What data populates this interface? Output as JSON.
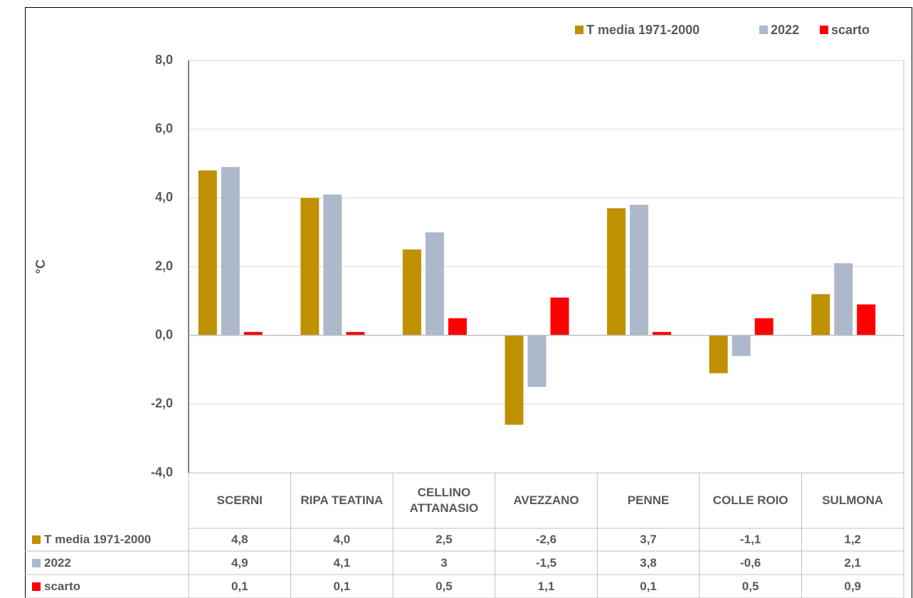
{
  "chart_data": {
    "type": "bar",
    "y_label": "°C",
    "categories": [
      "SCERNI",
      "RIPA TEATINA",
      "CELLINO ATTANASIO",
      "AVEZZANO",
      "PENNE",
      "COLLE ROIO",
      "SULMONA"
    ],
    "series": [
      {
        "name": "T media 1971-2000",
        "color": "#bf9000",
        "values": [
          4.8,
          4.0,
          2.5,
          -2.6,
          3.7,
          -1.1,
          1.2
        ],
        "value_labels": [
          "4,8",
          "4,0",
          "2,5",
          "-2,6",
          "3,7",
          "-1,1",
          "1,2"
        ]
      },
      {
        "name": "2022",
        "color": "#adb9ca",
        "values": [
          4.9,
          4.1,
          3,
          -1.5,
          3.8,
          -0.6,
          2.1
        ],
        "value_labels": [
          "4,9",
          "4,1",
          "3",
          "-1,5",
          "3,8",
          "-0,6",
          "2,1"
        ]
      },
      {
        "name": "scarto",
        "color": "#ff0000",
        "values": [
          0.1,
          0.1,
          0.5,
          1.1,
          0.1,
          0.5,
          0.9
        ],
        "value_labels": [
          "0,1",
          "0,1",
          "0,5",
          "1,1",
          "0,1",
          "0,5",
          "0,9"
        ]
      }
    ],
    "ylim": [
      -4,
      8
    ],
    "yticks": [
      {
        "value": -4,
        "label": "-4,0"
      },
      {
        "value": -2,
        "label": "-2,0"
      },
      {
        "value": 0,
        "label": "0,0"
      },
      {
        "value": 2,
        "label": "2,0"
      },
      {
        "value": 4,
        "label": "4,0"
      },
      {
        "value": 6,
        "label": "6,0"
      },
      {
        "value": 8,
        "label": "8,0"
      }
    ],
    "grid": true,
    "legend": "top-right"
  }
}
